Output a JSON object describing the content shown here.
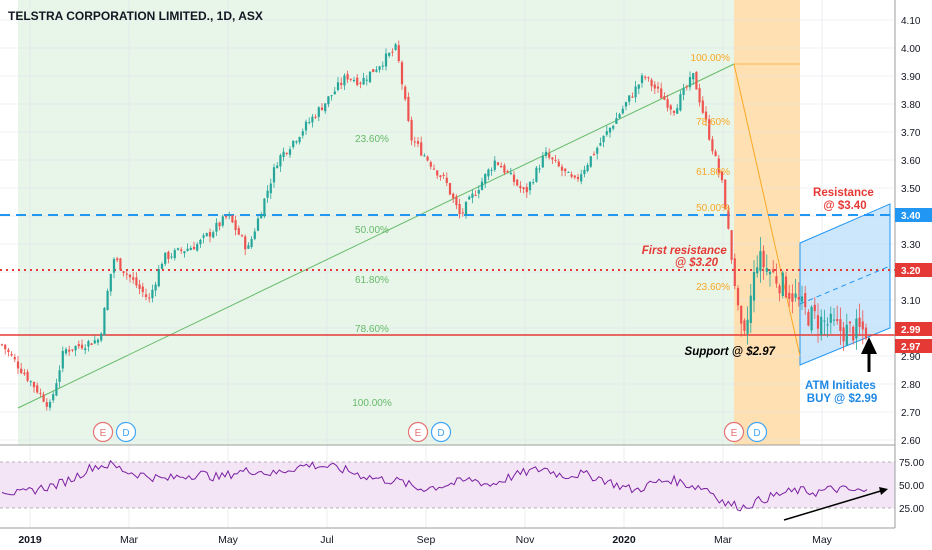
{
  "title": "TELSTRA CORPORATION LIMITED., 1D, ASX",
  "colors": {
    "up": "#26a69a",
    "down": "#ef5350",
    "blue": "#2196f3",
    "red": "#e53935",
    "green_zone": "#e8f5e9",
    "orange_zone": "#ffe0b2",
    "rsi": "#7b1fa2",
    "rsi_band": "#f3e5f5",
    "fib_green": "#66bb6a",
    "fib_orange": "#f9a825"
  },
  "chart_data": {
    "type": "candlestick",
    "price_axis": {
      "ticks": [
        "4.10",
        "4.00",
        "3.90",
        "3.80",
        "3.70",
        "3.60",
        "3.50",
        "3.40",
        "3.30",
        "3.20",
        "3.10",
        "3.00",
        "2.90",
        "2.80",
        "2.70",
        "2.60"
      ],
      "ylim": [
        2.6,
        4.1
      ]
    },
    "time_axis": [
      "2019",
      "Mar",
      "May",
      "Jul",
      "Sep",
      "Nov",
      "2020",
      "Mar",
      "May"
    ],
    "price_tags": [
      {
        "value": "3.40",
        "color": "#2196f3"
      },
      {
        "value": "3.20",
        "color": "#e53935"
      },
      {
        "value": "2.99",
        "color": "#e53935"
      },
      {
        "value": "2.97",
        "color": "#e53935"
      }
    ],
    "horizontal_levels": [
      {
        "price": 3.4,
        "style": "dashed",
        "color": "#2196f3"
      },
      {
        "price": 3.2,
        "style": "dotted",
        "color": "#e53935"
      },
      {
        "price": 2.97,
        "style": "solid",
        "color": "#e53935"
      }
    ],
    "fib_green": {
      "levels": [
        "23.60%",
        "50.00%",
        "61.80%",
        "78.60%",
        "100.00%"
      ],
      "start_price": 2.72,
      "end_price": 4.0
    },
    "fib_orange": {
      "levels": [
        "100.00%",
        "78.60%",
        "61.80%",
        "50.00%",
        "23.60%"
      ],
      "high": 3.94,
      "low": 2.9
    },
    "events": [
      {
        "month": "Feb 2019",
        "labels": [
          "E",
          "D"
        ]
      },
      {
        "month": "Aug 2019",
        "labels": [
          "E",
          "D"
        ]
      },
      {
        "month": "Feb 2020",
        "labels": [
          "E",
          "D"
        ]
      }
    ],
    "price_path": [
      [
        "2018-12",
        2.95
      ],
      [
        "2019-01",
        2.72
      ],
      [
        "2019-01",
        2.92
      ],
      [
        "2019-02",
        2.96
      ],
      [
        "2019-02",
        3.25
      ],
      [
        "2019-03",
        3.1
      ],
      [
        "2019-03",
        3.25
      ],
      [
        "2019-04",
        3.3
      ],
      [
        "2019-05",
        3.4
      ],
      [
        "2019-05",
        3.28
      ],
      [
        "2019-06",
        3.6
      ],
      [
        "2019-07",
        3.9
      ],
      [
        "2019-07",
        3.88
      ],
      [
        "2019-08",
        4.0
      ],
      [
        "2019-08",
        3.68
      ],
      [
        "2019-09",
        3.52
      ],
      [
        "2019-09",
        3.4
      ],
      [
        "2019-10",
        3.6
      ],
      [
        "2019-11",
        3.48
      ],
      [
        "2019-11",
        3.62
      ],
      [
        "2019-12",
        3.52
      ],
      [
        "2020-01",
        3.9
      ],
      [
        "2020-02",
        3.78
      ],
      [
        "2020-02",
        3.9
      ],
      [
        "2020-03",
        3.5
      ],
      [
        "2020-03",
        2.92
      ],
      [
        "2020-03",
        3.25
      ],
      [
        "2020-04",
        3.12
      ],
      [
        "2020-04",
        3.05
      ],
      [
        "2020-05",
        2.99
      ]
    ],
    "rsi": {
      "ticks": [
        "75.00",
        "50.00",
        "25.00"
      ],
      "ylim": [
        20,
        80
      ],
      "path": [
        45,
        40,
        46,
        50,
        58,
        70,
        72,
        64,
        60,
        56,
        60,
        62,
        58,
        64,
        66,
        62,
        68,
        72,
        70,
        66,
        60,
        56,
        54,
        46,
        48,
        52,
        56,
        50,
        58,
        64,
        68,
        60,
        62,
        58,
        50,
        44,
        52,
        56,
        50,
        46,
        30,
        26,
        34,
        40,
        44,
        42,
        46,
        44,
        42
      ]
    }
  },
  "annotations": {
    "resistance_340": [
      "Resistance",
      "@ $3.40"
    ],
    "resistance_320": [
      "First resistance",
      "@ $3.20"
    ],
    "support_297": "Support @ $2.97",
    "atm": [
      "ATM Initiates",
      "BUY @ $2.99"
    ]
  }
}
